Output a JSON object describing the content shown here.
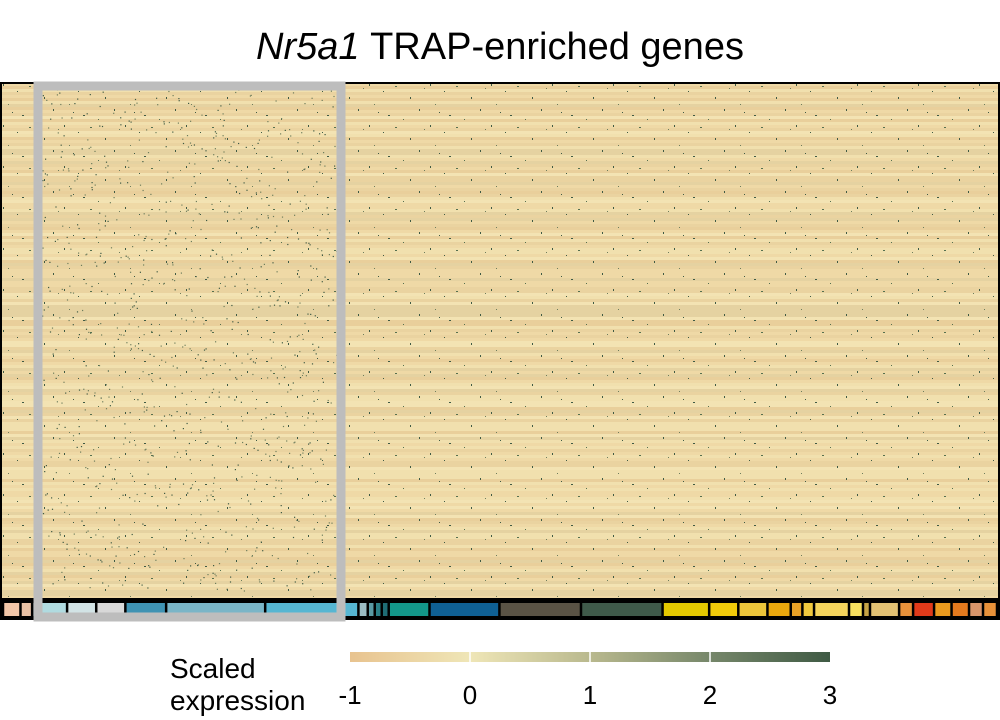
{
  "title": {
    "gene": "Nr5a1",
    "rest": "TRAP-enriched genes"
  },
  "legend": {
    "title_line1": "Scaled",
    "title_line2": "expression",
    "ticks": [
      "-1",
      "0",
      "1",
      "2",
      "3"
    ]
  },
  "colors": {
    "low": "#e8c38f",
    "mid": "#efe6b7",
    "high": "#3f5a44",
    "highlight_box": "#bdbdbd",
    "frame": "#000000"
  },
  "chart_data": {
    "type": "heatmap",
    "title": "Nr5a1 TRAP-enriched genes",
    "color_scale": {
      "label": "Scaled expression",
      "min": -1,
      "max": 3,
      "ticks": [
        -1,
        0,
        1,
        2,
        3
      ],
      "colors": [
        "#e8c38f",
        "#efe6b7",
        "#b9b98e",
        "#76876a",
        "#3f5a44"
      ]
    },
    "highlighted_cluster_group": "cells in light-blue clusters outlined by grey box",
    "cluster_bar": [
      {
        "color": "#f2c6a8",
        "weight": 1.5
      },
      {
        "color": "#e9c1a5",
        "weight": 1
      },
      {
        "color": "#b0dbe0",
        "weight": 3
      },
      {
        "color": "#d2e3e5",
        "weight": 2.5
      },
      {
        "color": "#d8d8d8",
        "weight": 2.5
      },
      {
        "color": "#3f93b3",
        "weight": 3.5
      },
      {
        "color": "#7ab5c7",
        "weight": 8.5
      },
      {
        "color": "#56b6d2",
        "weight": 8
      },
      {
        "color": "#9bbcc3",
        "weight": 0.8
      },
      {
        "color": "#5a9aa3",
        "weight": 0.6
      },
      {
        "color": "#2a7f86",
        "weight": 0.6
      },
      {
        "color": "#1f6d75",
        "weight": 0.6
      },
      {
        "color": "#13978a",
        "weight": 3.5
      },
      {
        "color": "#0f6094",
        "weight": 6
      },
      {
        "color": "#5a5345",
        "weight": 7
      },
      {
        "color": "#3f5a4a",
        "weight": 7
      },
      {
        "color": "#e3c800",
        "weight": 4
      },
      {
        "color": "#f1cb0a",
        "weight": 2.5
      },
      {
        "color": "#ecc53a",
        "weight": 2.5
      },
      {
        "color": "#eaa80d",
        "weight": 2
      },
      {
        "color": "#e8a126",
        "weight": 1
      },
      {
        "color": "#f1c93e",
        "weight": 1
      },
      {
        "color": "#f4d45c",
        "weight": 3
      },
      {
        "color": "#f7e05f",
        "weight": 1.2
      },
      {
        "color": "#c5a345",
        "weight": 0.6
      },
      {
        "color": "#e2c173",
        "weight": 2.5
      },
      {
        "color": "#e8913a",
        "weight": 1.2
      },
      {
        "color": "#e03a1a",
        "weight": 1.8
      },
      {
        "color": "#ea9a1e",
        "weight": 1.5
      },
      {
        "color": "#e47a1e",
        "weight": 1.5
      },
      {
        "color": "#d9956a",
        "weight": 1.2
      },
      {
        "color": "#e8913a",
        "weight": 1.2
      }
    ]
  }
}
